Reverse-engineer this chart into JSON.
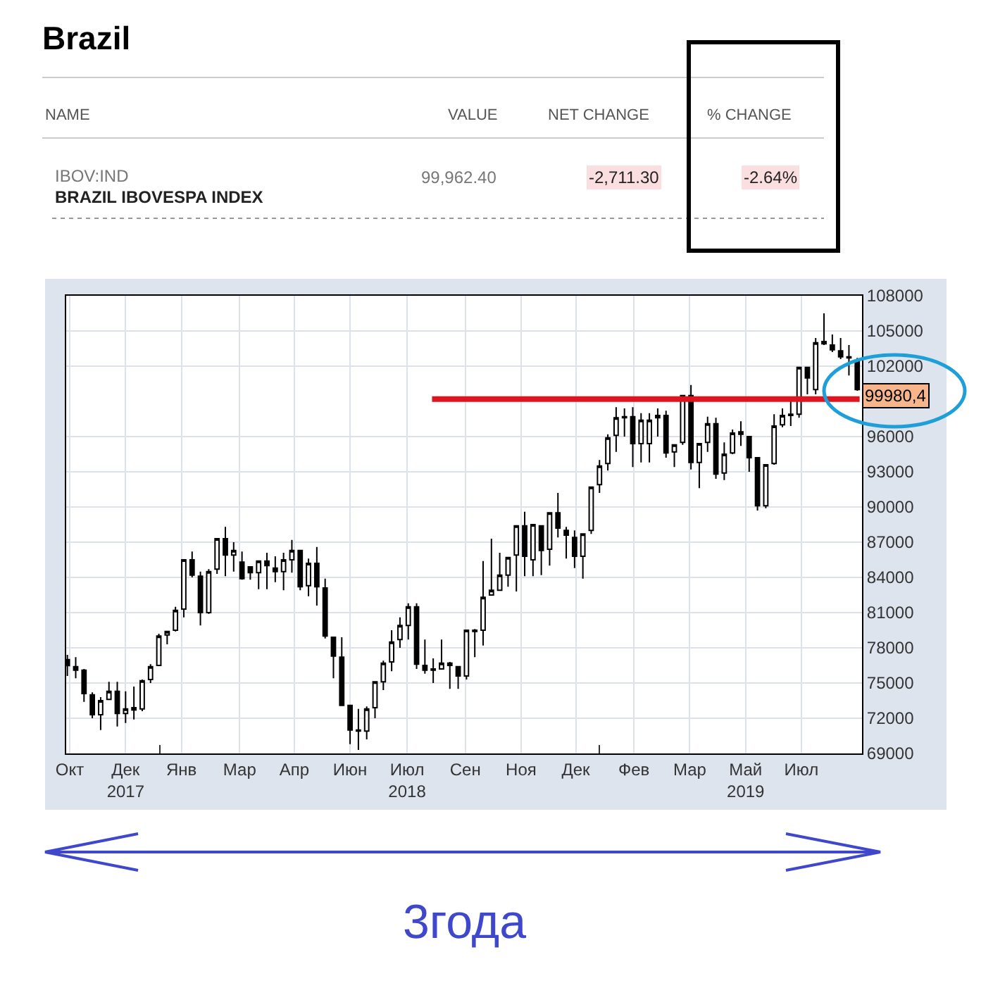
{
  "chart_data": {
    "type": "candlestick",
    "title": "Brazil",
    "annotations": [
      "NAME",
      "VALUE",
      "NET CHANGE",
      "% CHANGE",
      "IBOV:IND",
      "BRAZIL IBOVESPA INDEX",
      "99,962.40",
      "-2,711.30",
      "-2.64%",
      "99980,4",
      "3года"
    ],
    "x": [
      "2017-10-02",
      "2017-10-09",
      "2017-10-16",
      "2017-10-23",
      "2017-10-30",
      "2017-11-06",
      "2017-11-13",
      "2017-11-20",
      "2017-11-27",
      "2017-12-04",
      "2017-12-11",
      "2017-12-18",
      "2017-12-25",
      "2018-01-01",
      "2018-01-08",
      "2018-01-15",
      "2018-01-22",
      "2018-01-29",
      "2018-02-05",
      "2018-02-12",
      "2018-02-19",
      "2018-02-26",
      "2018-03-05",
      "2018-03-12",
      "2018-03-19",
      "2018-03-26",
      "2018-04-02",
      "2018-04-09",
      "2018-04-16",
      "2018-04-23",
      "2018-04-30",
      "2018-05-07",
      "2018-05-14",
      "2018-05-21",
      "2018-05-28",
      "2018-06-04",
      "2018-06-11",
      "2018-06-18",
      "2018-06-25",
      "2018-07-02",
      "2018-07-09",
      "2018-07-16",
      "2018-07-23",
      "2018-07-30",
      "2018-08-06",
      "2018-08-13",
      "2018-08-20",
      "2018-08-27",
      "2018-09-03",
      "2018-09-10",
      "2018-09-17",
      "2018-09-24",
      "2018-10-01",
      "2018-10-08",
      "2018-10-15",
      "2018-10-22",
      "2018-10-29",
      "2018-11-05",
      "2018-11-12",
      "2018-11-19",
      "2018-11-26",
      "2018-12-03",
      "2018-12-10",
      "2018-12-17",
      "2018-12-24",
      "2018-12-31",
      "2019-01-07",
      "2019-01-14",
      "2019-01-21",
      "2019-01-28",
      "2019-02-04",
      "2019-02-11",
      "2019-02-18",
      "2019-02-25",
      "2019-03-04",
      "2019-03-11",
      "2019-03-18",
      "2019-03-25",
      "2019-04-01",
      "2019-04-08",
      "2019-04-15",
      "2019-04-22",
      "2019-04-29",
      "2019-05-06",
      "2019-05-13",
      "2019-05-20",
      "2019-05-27",
      "2019-06-03",
      "2019-06-10",
      "2019-06-17",
      "2019-06-24",
      "2019-07-01",
      "2019-07-08",
      "2019-07-15",
      "2019-07-22",
      "2019-07-29"
    ],
    "ohlc": [
      [
        77000,
        77400,
        75600,
        76480
      ],
      [
        76400,
        77200,
        75400,
        76100
      ],
      [
        76100,
        76200,
        73400,
        74100
      ],
      [
        74000,
        74200,
        72000,
        72300
      ],
      [
        72300,
        73800,
        71000,
        73500
      ],
      [
        73600,
        75100,
        73600,
        74300
      ],
      [
        74300,
        75100,
        71300,
        72400
      ],
      [
        72400,
        74300,
        71600,
        72800
      ],
      [
        72700,
        74700,
        71900,
        72900
      ],
      [
        72800,
        75300,
        72600,
        75200
      ],
      [
        75300,
        76600,
        75000,
        76400
      ],
      [
        76500,
        79200,
        76500,
        79000
      ],
      [
        79100,
        79400,
        78300,
        79400
      ],
      [
        79500,
        81500,
        79400,
        81200
      ],
      [
        81300,
        85500,
        80600,
        85500
      ],
      [
        85500,
        86200,
        84000,
        84200
      ],
      [
        84100,
        84500,
        79900,
        81000
      ],
      [
        81000,
        84700,
        80900,
        84500
      ],
      [
        84700,
        87300,
        84300,
        87300
      ],
      [
        87300,
        88300,
        84100,
        85900
      ],
      [
        85900,
        87000,
        84500,
        86300
      ],
      [
        85300,
        86200,
        83800,
        83900
      ],
      [
        84900,
        84900,
        83800,
        84400
      ],
      [
        84400,
        85400,
        83000,
        85400
      ],
      [
        85400,
        86100,
        83000,
        85000
      ],
      [
        84800,
        85800,
        83600,
        84500
      ],
      [
        84500,
        86100,
        82900,
        85500
      ],
      [
        85500,
        87200,
        84400,
        86300
      ],
      [
        86300,
        86300,
        82900,
        83200
      ],
      [
        83300,
        85600,
        82400,
        85200
      ],
      [
        85200,
        86600,
        81600,
        83200
      ],
      [
        83100,
        83900,
        78800,
        79000
      ],
      [
        78900,
        78900,
        75400,
        77300
      ],
      [
        77200,
        78900,
        73100,
        73100
      ],
      [
        73100,
        73100,
        69800,
        71000
      ],
      [
        70900,
        72800,
        69300,
        71000
      ],
      [
        70900,
        73000,
        70200,
        72800
      ],
      [
        72900,
        75100,
        72000,
        75100
      ],
      [
        75100,
        76900,
        74400,
        76700
      ],
      [
        76800,
        79500,
        76000,
        78500
      ],
      [
        78700,
        80600,
        78000,
        79900
      ],
      [
        79900,
        81800,
        78700,
        81500
      ],
      [
        81500,
        81800,
        76200,
        76600
      ],
      [
        76500,
        78700,
        75800,
        76100
      ],
      [
        76200,
        77100,
        75000,
        76100
      ],
      [
        76200,
        78700,
        76200,
        76700
      ],
      [
        76700,
        76800,
        74500,
        76500
      ],
      [
        76400,
        76400,
        74500,
        75600
      ],
      [
        75600,
        79500,
        75300,
        79500
      ],
      [
        79400,
        79600,
        77200,
        79500
      ],
      [
        79500,
        85400,
        78200,
        82300
      ],
      [
        82500,
        87300,
        82500,
        82900
      ],
      [
        82900,
        86100,
        82900,
        84200
      ],
      [
        84200,
        85700,
        83200,
        85700
      ],
      [
        85900,
        88400,
        82800,
        88400
      ],
      [
        88400,
        89600,
        84100,
        85800
      ],
      [
        85500,
        88500,
        84100,
        88500
      ],
      [
        88400,
        88400,
        84200,
        86300
      ],
      [
        86400,
        89500,
        85000,
        89500
      ],
      [
        89500,
        91200,
        87400,
        88200
      ],
      [
        88000,
        88300,
        85600,
        87600
      ],
      [
        87400,
        88000,
        84800,
        85800
      ],
      [
        85800,
        87700,
        83900,
        87700
      ],
      [
        88000,
        91700,
        87700,
        91700
      ],
      [
        91900,
        94000,
        91200,
        93500
      ],
      [
        93700,
        96200,
        93100,
        95900
      ],
      [
        96100,
        98500,
        94700,
        97600
      ],
      [
        97600,
        98400,
        96000,
        97700
      ],
      [
        97700,
        98500,
        93400,
        95400
      ],
      [
        95400,
        98000,
        93800,
        97400
      ],
      [
        95400,
        98000,
        93800,
        97400
      ],
      [
        97600,
        98400,
        96000,
        97800
      ],
      [
        97800,
        98200,
        94200,
        94600
      ],
      [
        94700,
        95300,
        93400,
        95300
      ],
      [
        95500,
        99500,
        95300,
        99500
      ],
      [
        99500,
        100400,
        93200,
        93800
      ],
      [
        93800,
        95400,
        91600,
        95400
      ],
      [
        95500,
        97700,
        94700,
        97100
      ],
      [
        97100,
        97600,
        92400,
        92800
      ],
      [
        92900,
        95500,
        92300,
        94500
      ],
      [
        94600,
        96600,
        94500,
        96300
      ],
      [
        96200,
        97300,
        95200,
        96400
      ],
      [
        96000,
        96000,
        93000,
        94200
      ],
      [
        94200,
        94200,
        89700,
        90100
      ],
      [
        90100,
        93600,
        89900,
        93600
      ],
      [
        93700,
        97900,
        93600,
        96900
      ],
      [
        97000,
        98400,
        96800,
        97800
      ],
      [
        97800,
        99000,
        96900,
        97900
      ],
      [
        97900,
        101900,
        97600,
        101900
      ],
      [
        101900,
        101900,
        99600,
        101000
      ],
      [
        100000,
        104400,
        99600,
        104000
      ],
      [
        103900,
        106500,
        103800,
        104100
      ],
      [
        103800,
        104700,
        103200,
        103400
      ],
      [
        103300,
        104400,
        102600,
        102800
      ],
      [
        102800,
        103800,
        101200,
        102700
      ],
      [
        102500,
        102700,
        99900,
        100000
      ]
    ],
    "xlim": [
      "2017-10-01",
      "2019-08-02"
    ],
    "xticks": [
      {
        "value": "2017-10-04",
        "label": "Окт"
      },
      {
        "value": "2017-11-20",
        "label": "Дек\n2017"
      },
      {
        "value": "2018-01-06",
        "label": "Янв"
      },
      {
        "value": "2018-02-24",
        "label": "Мар"
      },
      {
        "value": "2018-04-11",
        "label": "Апр"
      },
      {
        "value": "2018-05-28",
        "label": "Июн"
      },
      {
        "value": "2018-07-15",
        "label": "Июл\n2018"
      },
      {
        "value": "2018-09-02",
        "label": "Сен"
      },
      {
        "value": "2018-10-19",
        "label": "Ноя"
      },
      {
        "value": "2018-12-04",
        "label": "Дек"
      },
      {
        "value": "2019-01-22",
        "label": "Фев"
      },
      {
        "value": "2019-03-10",
        "label": "Мар"
      },
      {
        "value": "2019-04-26",
        "label": "Май\n2019"
      },
      {
        "value": "2019-06-12",
        "label": "Июл"
      },
      {
        "value": "2017-12-19",
        "label": null
      },
      {
        "value": "2018-12-24",
        "label": null
      }
    ],
    "ylim": [
      69000,
      108000
    ],
    "yticks": [
      69000,
      72000,
      75000,
      78000,
      81000,
      84000,
      87000,
      90000,
      93000,
      96000,
      102000,
      105000,
      108000
    ],
    "grid": true,
    "series": [
      {
        "type": "line",
        "x": [
          "2018-08-05",
          "2019-07-31"
        ],
        "values": [
          99200,
          99200
        ],
        "color": "#e0141e"
      }
    ]
  }
}
